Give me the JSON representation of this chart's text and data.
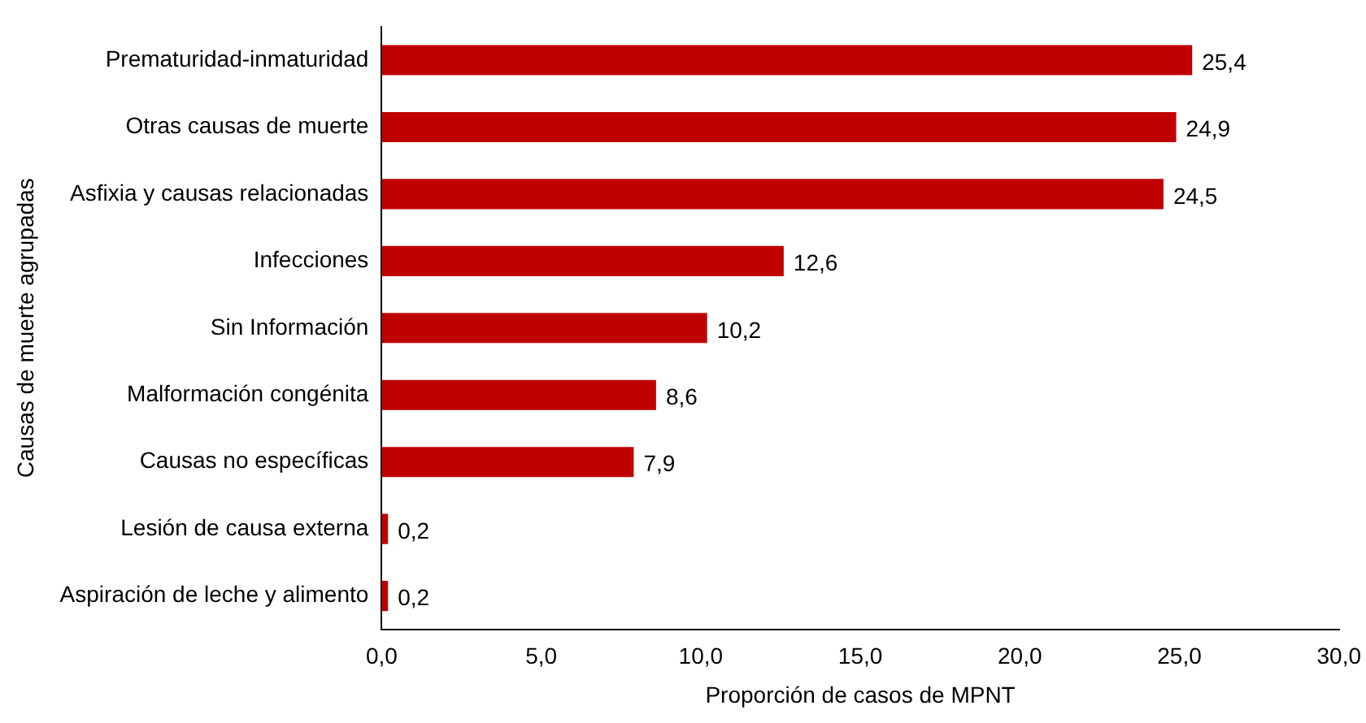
{
  "chart_data": {
    "type": "bar",
    "orientation": "horizontal",
    "xlabel": "Proporción de casos de MPNT",
    "ylabel": "Causas de muerte agrupadas",
    "categories": [
      "Prematuridad-inmaturidad",
      "Otras causas de muerte",
      "Asfixia y causas relacionadas",
      "Infecciones",
      "Sin Información",
      "Malformación congénita",
      "Causas no específicas",
      "Lesión de causa externa",
      "Aspiración de leche y alimento"
    ],
    "values": [
      25.4,
      24.9,
      24.5,
      12.6,
      10.2,
      8.6,
      7.9,
      0.2,
      0.2
    ],
    "value_labels": [
      "25,4",
      "24,9",
      "24,5",
      "12,6",
      "10,2",
      "8,6",
      "7,9",
      "0,2",
      "0,2"
    ],
    "color": "#c00000",
    "xlim": [
      0,
      30
    ],
    "xticks": [
      {
        "value": 0,
        "label": "0,0"
      },
      {
        "value": 5,
        "label": "5,0"
      },
      {
        "value": 10,
        "label": "10,0"
      },
      {
        "value": 15,
        "label": "15,0"
      },
      {
        "value": 20,
        "label": "20,0"
      },
      {
        "value": 25,
        "label": "25,0"
      },
      {
        "value": 30,
        "label": "30,0"
      }
    ],
    "grid": false,
    "legend": false
  }
}
